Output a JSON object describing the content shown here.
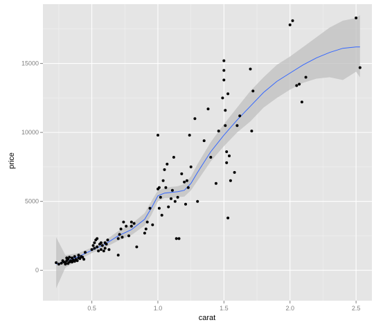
{
  "chart_data": {
    "type": "scatter",
    "xlabel": "carat",
    "ylabel": "price",
    "xlim": [
      0.13,
      2.62
    ],
    "ylim": [
      -2200,
      19300
    ],
    "x_ticks": [
      0.5,
      1.0,
      1.5,
      2.0,
      2.5
    ],
    "x_tick_labels": [
      "0.5",
      "1.0",
      "1.5",
      "2.0",
      "2.5"
    ],
    "y_ticks": [
      0,
      5000,
      10000,
      15000
    ],
    "y_tick_labels": [
      "0",
      "5000",
      "10000",
      "15000"
    ],
    "grid": true,
    "colors": {
      "panel": "#e5e5e5",
      "grid_major": "#ffffff",
      "grid_minor": "#f2f2f2",
      "point": "#000000",
      "smooth": "#3366ff",
      "ribbon": "#bfbfbf"
    },
    "points": [
      [
        0.23,
        560
      ],
      [
        0.25,
        450
      ],
      [
        0.27,
        520
      ],
      [
        0.28,
        700
      ],
      [
        0.29,
        600
      ],
      [
        0.3,
        450
      ],
      [
        0.3,
        550
      ],
      [
        0.31,
        700
      ],
      [
        0.31,
        900
      ],
      [
        0.32,
        500
      ],
      [
        0.32,
        800
      ],
      [
        0.33,
        600
      ],
      [
        0.33,
        950
      ],
      [
        0.34,
        700
      ],
      [
        0.35,
        600
      ],
      [
        0.35,
        900
      ],
      [
        0.36,
        750
      ],
      [
        0.37,
        650
      ],
      [
        0.37,
        1000
      ],
      [
        0.38,
        800
      ],
      [
        0.39,
        700
      ],
      [
        0.4,
        900
      ],
      [
        0.4,
        1100
      ],
      [
        0.41,
        850
      ],
      [
        0.42,
        1000
      ],
      [
        0.43,
        950
      ],
      [
        0.44,
        800
      ],
      [
        0.45,
        1300
      ],
      [
        0.5,
        1500
      ],
      [
        0.51,
        1800
      ],
      [
        0.52,
        1600
      ],
      [
        0.52,
        2000
      ],
      [
        0.53,
        2200
      ],
      [
        0.54,
        2300
      ],
      [
        0.54,
        1700
      ],
      [
        0.55,
        1400
      ],
      [
        0.56,
        1900
      ],
      [
        0.57,
        2000
      ],
      [
        0.57,
        1500
      ],
      [
        0.58,
        1800
      ],
      [
        0.59,
        1400
      ],
      [
        0.6,
        2000
      ],
      [
        0.6,
        1600
      ],
      [
        0.61,
        1900
      ],
      [
        0.62,
        2200
      ],
      [
        0.63,
        1500
      ],
      [
        0.7,
        1100
      ],
      [
        0.7,
        2300
      ],
      [
        0.71,
        2600
      ],
      [
        0.72,
        3000
      ],
      [
        0.73,
        2400
      ],
      [
        0.74,
        3500
      ],
      [
        0.76,
        3200
      ],
      [
        0.78,
        2500
      ],
      [
        0.8,
        3500
      ],
      [
        0.8,
        3200
      ],
      [
        0.82,
        3400
      ],
      [
        0.84,
        1700
      ],
      [
        0.9,
        2700
      ],
      [
        0.91,
        3000
      ],
      [
        0.92,
        3500
      ],
      [
        0.94,
        4500
      ],
      [
        0.96,
        3300
      ],
      [
        1.0,
        9800
      ],
      [
        1.0,
        5900
      ],
      [
        1.01,
        6000
      ],
      [
        1.01,
        4500
      ],
      [
        1.02,
        5300
      ],
      [
        1.03,
        4000
      ],
      [
        1.04,
        6500
      ],
      [
        1.05,
        7300
      ],
      [
        1.06,
        6000
      ],
      [
        1.07,
        7700
      ],
      [
        1.08,
        4600
      ],
      [
        1.1,
        5200
      ],
      [
        1.11,
        5800
      ],
      [
        1.12,
        8200
      ],
      [
        1.13,
        5000
      ],
      [
        1.14,
        2300
      ],
      [
        1.15,
        5300
      ],
      [
        1.16,
        2300
      ],
      [
        1.18,
        7000
      ],
      [
        1.2,
        6400
      ],
      [
        1.21,
        4800
      ],
      [
        1.22,
        6500
      ],
      [
        1.23,
        6000
      ],
      [
        1.24,
        9800
      ],
      [
        1.25,
        7500
      ],
      [
        1.28,
        11000
      ],
      [
        1.3,
        5000
      ],
      [
        1.35,
        9400
      ],
      [
        1.38,
        11700
      ],
      [
        1.4,
        8200
      ],
      [
        1.44,
        6300
      ],
      [
        1.46,
        10100
      ],
      [
        1.49,
        12500
      ],
      [
        1.5,
        14500
      ],
      [
        1.5,
        15200
      ],
      [
        1.5,
        13800
      ],
      [
        1.51,
        11600
      ],
      [
        1.51,
        10500
      ],
      [
        1.52,
        8600
      ],
      [
        1.52,
        7800
      ],
      [
        1.53,
        12800
      ],
      [
        1.53,
        3800
      ],
      [
        1.54,
        8300
      ],
      [
        1.55,
        6500
      ],
      [
        1.58,
        7100
      ],
      [
        1.6,
        10500
      ],
      [
        1.62,
        11200
      ],
      [
        1.7,
        14600
      ],
      [
        1.72,
        13000
      ],
      [
        1.71,
        10100
      ],
      [
        2.0,
        17800
      ],
      [
        2.02,
        18100
      ],
      [
        2.05,
        13400
      ],
      [
        2.07,
        13500
      ],
      [
        2.09,
        12200
      ],
      [
        2.12,
        14000
      ],
      [
        2.5,
        18300
      ],
      [
        2.53,
        14700
      ]
    ],
    "smooth": [
      [
        0.23,
        450
      ],
      [
        0.3,
        650
      ],
      [
        0.4,
        1000
      ],
      [
        0.5,
        1450
      ],
      [
        0.6,
        1900
      ],
      [
        0.7,
        2500
      ],
      [
        0.8,
        2950
      ],
      [
        0.9,
        3700
      ],
      [
        0.95,
        4500
      ],
      [
        1.0,
        5400
      ],
      [
        1.05,
        5600
      ],
      [
        1.1,
        5650
      ],
      [
        1.15,
        5700
      ],
      [
        1.2,
        5800
      ],
      [
        1.25,
        6300
      ],
      [
        1.3,
        7100
      ],
      [
        1.4,
        8600
      ],
      [
        1.5,
        9800
      ],
      [
        1.6,
        10900
      ],
      [
        1.7,
        11900
      ],
      [
        1.8,
        12900
      ],
      [
        1.9,
        13700
      ],
      [
        2.0,
        14300
      ],
      [
        2.1,
        14900
      ],
      [
        2.2,
        15400
      ],
      [
        2.3,
        15800
      ],
      [
        2.4,
        16100
      ],
      [
        2.5,
        16200
      ],
      [
        2.53,
        16200
      ]
    ],
    "ribbon_lower": [
      [
        0.23,
        -1300
      ],
      [
        0.3,
        200
      ],
      [
        0.4,
        750
      ],
      [
        0.5,
        1250
      ],
      [
        0.6,
        1650
      ],
      [
        0.7,
        2150
      ],
      [
        0.8,
        2550
      ],
      [
        0.9,
        3250
      ],
      [
        0.95,
        4000
      ],
      [
        1.0,
        5000
      ],
      [
        1.05,
        5250
      ],
      [
        1.1,
        5250
      ],
      [
        1.15,
        5300
      ],
      [
        1.2,
        5350
      ],
      [
        1.25,
        5800
      ],
      [
        1.3,
        6500
      ],
      [
        1.4,
        7900
      ],
      [
        1.5,
        9000
      ],
      [
        1.6,
        10000
      ],
      [
        1.7,
        10800
      ],
      [
        1.8,
        11800
      ],
      [
        1.9,
        12500
      ],
      [
        2.0,
        13100
      ],
      [
        2.1,
        13600
      ],
      [
        2.2,
        13900
      ],
      [
        2.3,
        14000
      ],
      [
        2.4,
        13800
      ],
      [
        2.5,
        14400
      ],
      [
        2.53,
        14000
      ]
    ],
    "ribbon_upper": [
      [
        0.23,
        2400
      ],
      [
        0.3,
        1100
      ],
      [
        0.4,
        1250
      ],
      [
        0.5,
        1650
      ],
      [
        0.6,
        2150
      ],
      [
        0.7,
        2850
      ],
      [
        0.8,
        3350
      ],
      [
        0.9,
        4150
      ],
      [
        0.95,
        5000
      ],
      [
        1.0,
        5800
      ],
      [
        1.05,
        5950
      ],
      [
        1.1,
        6050
      ],
      [
        1.15,
        6100
      ],
      [
        1.2,
        6250
      ],
      [
        1.25,
        6800
      ],
      [
        1.3,
        7700
      ],
      [
        1.4,
        9300
      ],
      [
        1.5,
        10600
      ],
      [
        1.6,
        11800
      ],
      [
        1.7,
        13000
      ],
      [
        1.8,
        14000
      ],
      [
        1.9,
        14900
      ],
      [
        2.0,
        15500
      ],
      [
        2.1,
        16200
      ],
      [
        2.2,
        16900
      ],
      [
        2.3,
        17600
      ],
      [
        2.4,
        18100
      ],
      [
        2.5,
        18300
      ],
      [
        2.53,
        18500
      ]
    ]
  }
}
